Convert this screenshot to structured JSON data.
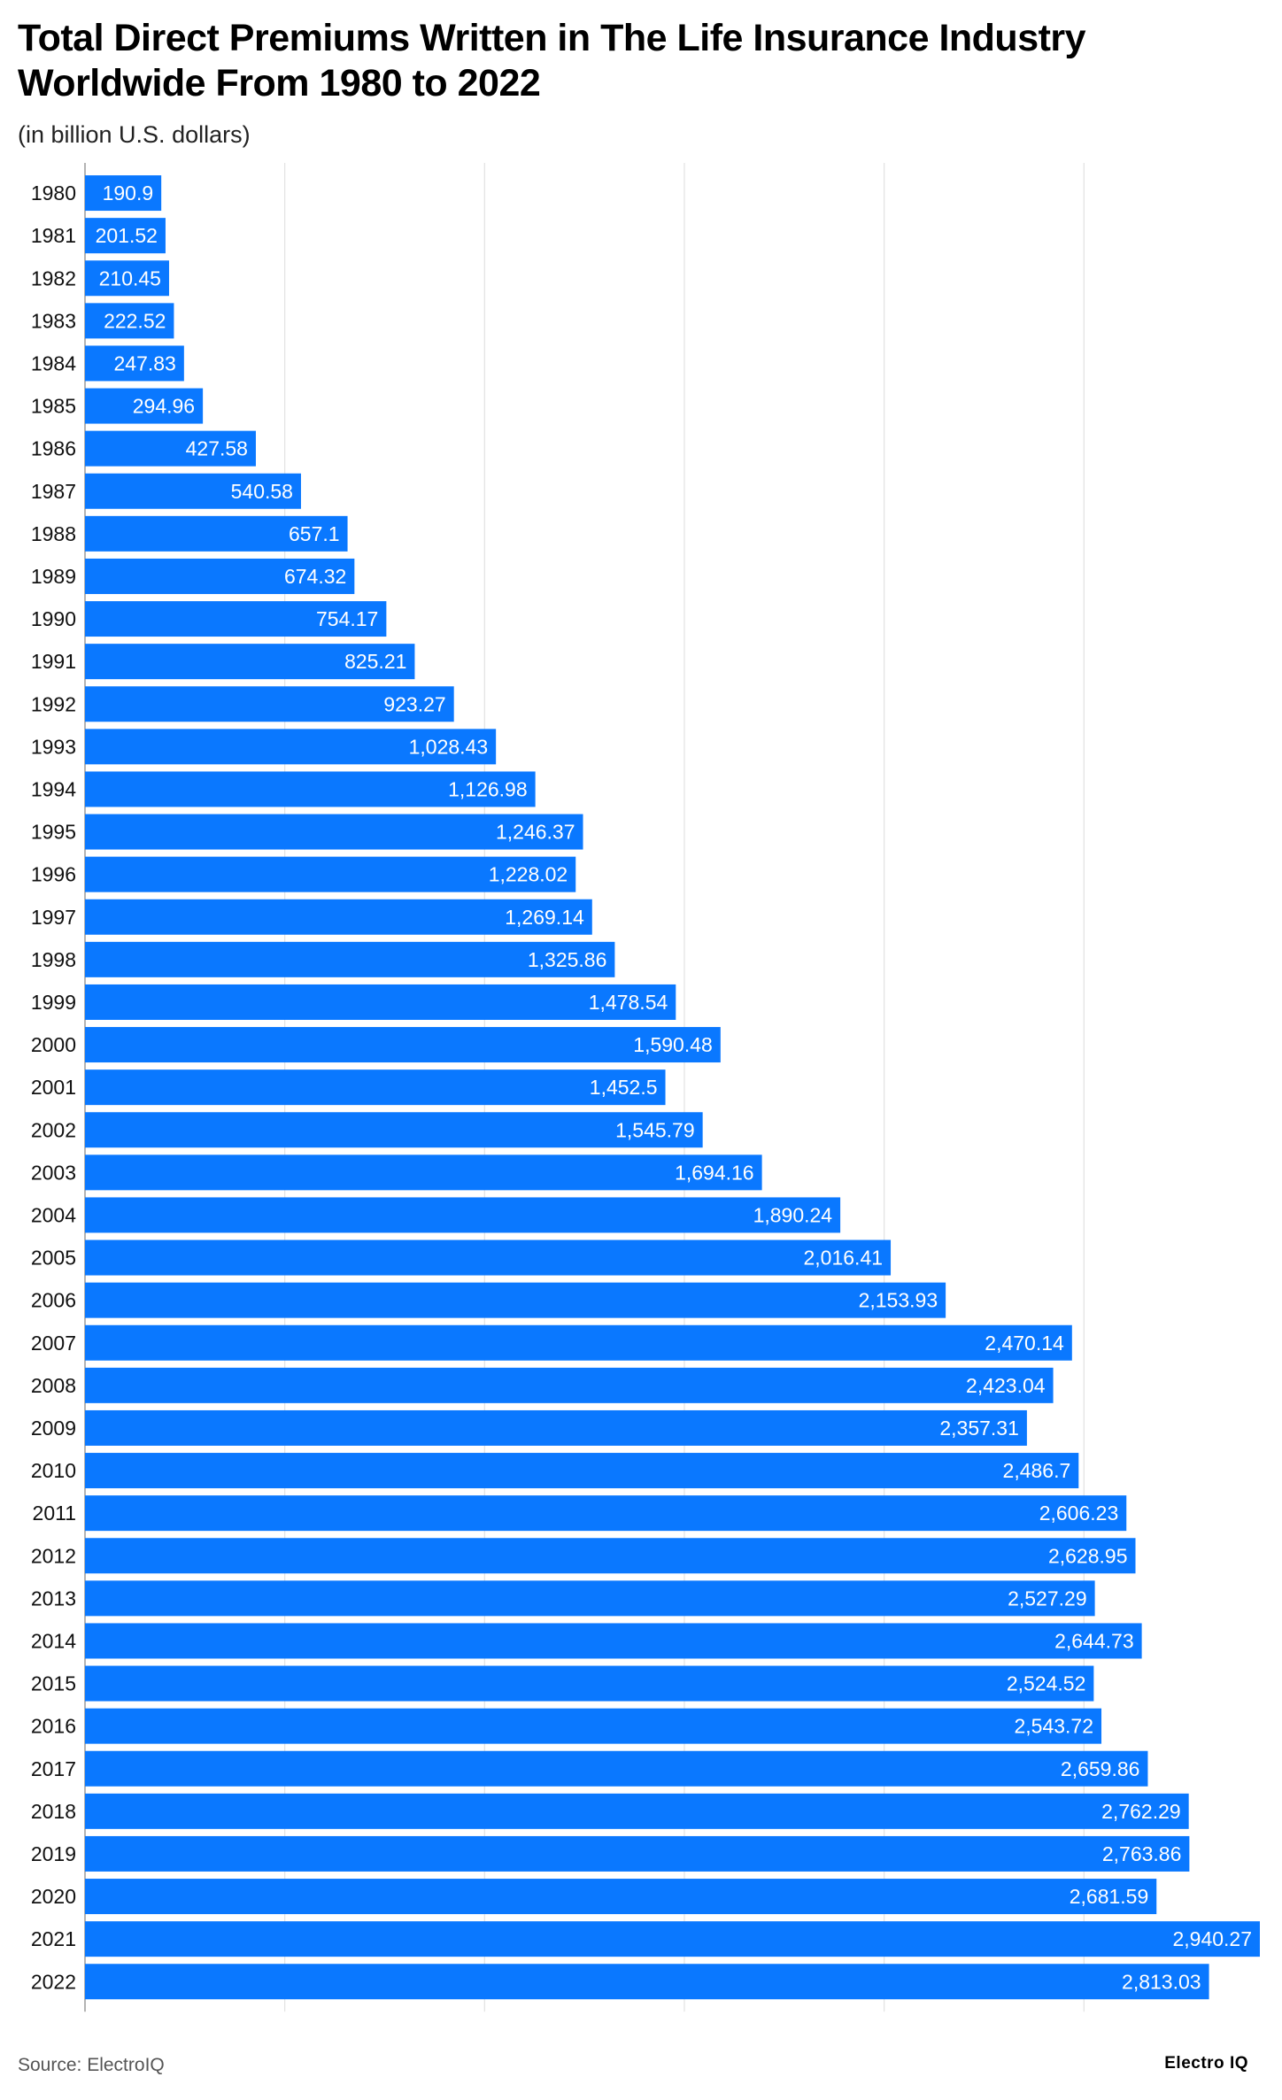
{
  "header": {
    "title": "Total Direct Premiums Written in The Life Insurance Industry Worldwide From 1980 to 2022",
    "subtitle": "(in billion U.S. dollars)"
  },
  "footer": {
    "source": "Source: ElectroIQ",
    "logo_text": "Electro IQ"
  },
  "chart_data": {
    "type": "bar",
    "orientation": "horizontal",
    "title": "Total Direct Premiums Written in The Life Insurance Industry Worldwide From 1980 to 2022",
    "subtitle": "(in billion U.S. dollars)",
    "xlabel": "",
    "ylabel": "",
    "xlim": [
      0,
      2940.27
    ],
    "xticks": [
      0,
      500,
      1000,
      1500,
      2000,
      2500
    ],
    "xtick_labels": [
      "0",
      "500",
      "1,000",
      "1,500",
      "2,000",
      "2,500"
    ],
    "grid": true,
    "bar_color": "#0a78ff",
    "categories": [
      "1980",
      "1981",
      "1982",
      "1983",
      "1984",
      "1985",
      "1986",
      "1987",
      "1988",
      "1989",
      "1990",
      "1991",
      "1992",
      "1993",
      "1994",
      "1995",
      "1996",
      "1997",
      "1998",
      "1999",
      "2000",
      "2001",
      "2002",
      "2003",
      "2004",
      "2005",
      "2006",
      "2007",
      "2008",
      "2009",
      "2010",
      "2011",
      "2012",
      "2013",
      "2014",
      "2015",
      "2016",
      "2017",
      "2018",
      "2019",
      "2020",
      "2021",
      "2022"
    ],
    "values": [
      190.9,
      201.52,
      210.45,
      222.52,
      247.83,
      294.96,
      427.58,
      540.58,
      657.1,
      674.32,
      754.17,
      825.21,
      923.27,
      1028.43,
      1126.98,
      1246.37,
      1228.02,
      1269.14,
      1325.86,
      1478.54,
      1590.48,
      1452.5,
      1545.79,
      1694.16,
      1890.24,
      2016.41,
      2153.93,
      2470.14,
      2423.04,
      2357.31,
      2486.7,
      2606.23,
      2628.95,
      2527.29,
      2644.73,
      2524.52,
      2543.72,
      2659.86,
      2762.29,
      2763.86,
      2681.59,
      2940.27,
      2813.03
    ],
    "value_labels": [
      "190.9",
      "201.52",
      "210.45",
      "222.52",
      "247.83",
      "294.96",
      "427.58",
      "540.58",
      "657.1",
      "674.32",
      "754.17",
      "825.21",
      "923.27",
      "1,028.43",
      "1,126.98",
      "1,246.37",
      "1,228.02",
      "1,269.14",
      "1,325.86",
      "1,478.54",
      "1,590.48",
      "1,452.5",
      "1,545.79",
      "1,694.16",
      "1,890.24",
      "2,016.41",
      "2,153.93",
      "2,470.14",
      "2,423.04",
      "2,357.31",
      "2,486.7",
      "2,606.23",
      "2,628.95",
      "2,527.29",
      "2,644.73",
      "2,524.52",
      "2,543.72",
      "2,659.86",
      "2,762.29",
      "2,763.86",
      "2,681.59",
      "2,940.27",
      "2,813.03"
    ]
  }
}
